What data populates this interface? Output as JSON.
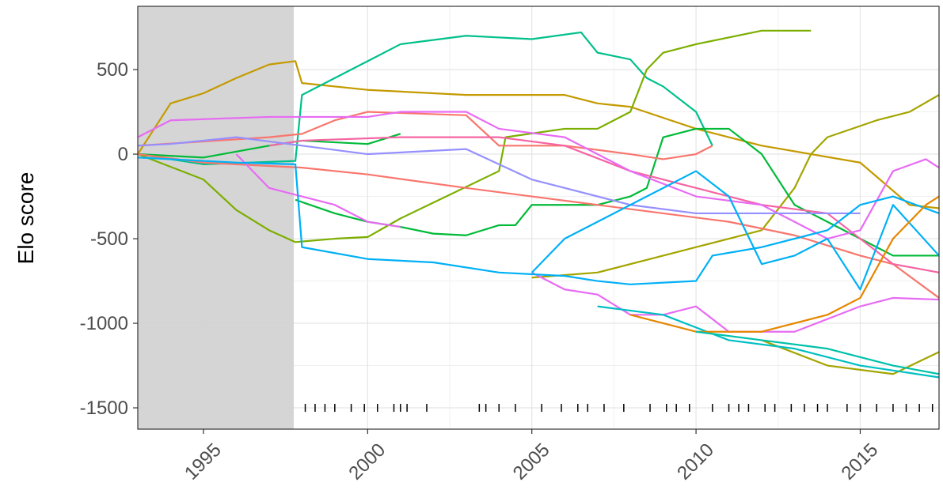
{
  "chart_data": {
    "type": "line",
    "y_label": "Elo score",
    "xlim": [
      1993,
      2017.4
    ],
    "xticks": [
      1995,
      2000,
      2005,
      2010,
      2015
    ],
    "ylim": [
      -1626,
      874
    ],
    "yticks": [
      500,
      0,
      -500,
      -1000,
      -1500
    ],
    "grid": true,
    "shaded_range": [
      1993,
      1997.75
    ],
    "shade_color": "#d3d3d3",
    "rug": {
      "y": -1500,
      "color": "#000",
      "x": [
        1998.1,
        1998.4,
        1998.7,
        1999.0,
        1999.5,
        1999.9,
        2000.3,
        2000.8,
        2001.0,
        2001.2,
        2001.8,
        2003.4,
        2003.6,
        2004.0,
        2004.5,
        2005.3,
        2005.9,
        2006.4,
        2006.7,
        2007.2,
        2007.8,
        2008.6,
        2009.1,
        2009.4,
        2009.8,
        2010.5,
        2011.0,
        2011.3,
        2011.6,
        2012.1,
        2012.4,
        2012.9,
        2013.3,
        2013.7,
        2014.0,
        2014.6,
        2015.0,
        2015.5,
        2016.0,
        2016.4,
        2016.8,
        2017.2
      ]
    },
    "series": [
      {
        "color": "#C49A00",
        "x": [
          1993,
          1994,
          1995,
          1996,
          1997,
          1997.8,
          1998,
          2000,
          2003,
          2006,
          2007,
          2008,
          2010,
          2012,
          2015,
          2016.5,
          2017.4
        ],
        "values": [
          0,
          300,
          360,
          450,
          530,
          550,
          420,
          380,
          350,
          350,
          300,
          280,
          150,
          50,
          -50,
          -300,
          -320
        ]
      },
      {
        "color": "#00C08B",
        "x": [
          1993,
          1995,
          1997.8,
          1998,
          1999,
          2000,
          2001,
          2003,
          2005,
          2006.5,
          2007,
          2008,
          2008.5,
          2009,
          2010,
          2010.5
        ],
        "values": [
          0,
          -60,
          -40,
          350,
          450,
          550,
          650,
          700,
          680,
          720,
          600,
          560,
          450,
          400,
          250,
          50
        ]
      },
      {
        "color": "#7CAE00",
        "x": [
          1993,
          1995,
          1996,
          1997,
          1997.8,
          1999,
          2000,
          2001,
          2004,
          2004.2,
          2006,
          2007,
          2008,
          2008.5,
          2009,
          2010,
          2012,
          2013.5
        ],
        "values": [
          0,
          -150,
          -330,
          -450,
          -520,
          -500,
          -490,
          -380,
          -100,
          100,
          150,
          150,
          250,
          500,
          600,
          650,
          730,
          730
        ]
      },
      {
        "color": "#A3A500",
        "x": [
          2005,
          2007,
          2009,
          2011,
          2012,
          2013,
          2013.5,
          2014,
          2015.5,
          2016.5,
          2017.4
        ],
        "values": [
          -730,
          -700,
          -600,
          -500,
          -450,
          -200,
          0,
          100,
          200,
          250,
          350
        ]
      },
      {
        "color": "#A3A500",
        "x": [
          2012,
          2014,
          2016,
          2017.4
        ],
        "values": [
          -1100,
          -1250,
          -1300,
          -1170
        ]
      },
      {
        "color": "#00BA38",
        "x": [
          1993,
          1995,
          1997,
          1998,
          2000,
          2001
        ],
        "values": [
          0,
          -20,
          50,
          80,
          60,
          120
        ]
      },
      {
        "color": "#00BA38",
        "x": [
          1997.8,
          1999,
          2000,
          2001,
          2002,
          2003,
          2004,
          2004.5,
          2005,
          2007,
          2008,
          2008.5,
          2009,
          2010,
          2011,
          2012,
          2013,
          2014,
          2015,
          2016,
          2017.4
        ],
        "values": [
          -270,
          -350,
          -400,
          -430,
          -470,
          -480,
          -420,
          -420,
          -300,
          -300,
          -250,
          -200,
          100,
          150,
          150,
          0,
          -300,
          -400,
          -500,
          -600,
          -600
        ]
      },
      {
        "color": "#F8766D",
        "x": [
          1993,
          1995,
          1998,
          2000,
          2003,
          2005,
          2007,
          2009,
          2011,
          2013,
          2015,
          2016,
          2017.4
        ],
        "values": [
          0,
          -50,
          -80,
          -120,
          -200,
          -250,
          -300,
          -350,
          -400,
          -480,
          -600,
          -650,
          -850
        ]
      },
      {
        "color": "#F8766D",
        "x": [
          1993,
          1997,
          1998,
          1999,
          2000,
          2003,
          2004,
          2006,
          2008,
          2009,
          2010,
          2010.5
        ],
        "values": [
          50,
          100,
          120,
          200,
          250,
          230,
          50,
          50,
          0,
          -30,
          0,
          50
        ]
      },
      {
        "color": "#F564A3",
        "x": [
          1997,
          1998,
          2001,
          2004,
          2006,
          2008,
          2010,
          2012,
          2014,
          2016,
          2017.4
        ],
        "values": [
          50,
          80,
          100,
          100,
          50,
          -100,
          -200,
          -300,
          -350,
          -650,
          -700
        ]
      },
      {
        "color": "#E76BF3",
        "x": [
          1993,
          1994,
          1997,
          2000,
          2001,
          2003,
          2004,
          2006,
          2008,
          2010,
          2012,
          2014,
          2015,
          2016,
          2017,
          2017.4
        ],
        "values": [
          100,
          200,
          220,
          220,
          250,
          250,
          150,
          100,
          -100,
          -250,
          -300,
          -500,
          -450,
          -100,
          -30,
          -80
        ]
      },
      {
        "color": "#E76BF3",
        "x": [
          1996,
          1997,
          1998,
          1999,
          2000,
          2001
        ],
        "values": [
          0,
          -200,
          -250,
          -300,
          -400,
          -430
        ]
      },
      {
        "color": "#E76BF3",
        "x": [
          2005,
          2006,
          2007,
          2008,
          2009,
          2010,
          2011,
          2013,
          2015,
          2016,
          2017.4
        ],
        "values": [
          -700,
          -800,
          -830,
          -950,
          -950,
          -900,
          -1050,
          -1050,
          -900,
          -850,
          -860
        ]
      },
      {
        "color": "#9590FF",
        "x": [
          1993,
          1994,
          1996,
          1998,
          2000,
          2002,
          2003,
          2005,
          2006,
          2008,
          2010,
          2012,
          2014,
          2015
        ],
        "values": [
          50,
          60,
          100,
          50,
          0,
          20,
          30,
          -150,
          -200,
          -300,
          -350,
          -350,
          -350,
          -350
        ]
      },
      {
        "color": "#00B0F6",
        "x": [
          1993,
          1996,
          1997.8,
          1998,
          2000,
          2002,
          2004,
          2006,
          2007,
          2008,
          2010,
          2010.5,
          2012,
          2014,
          2015,
          2016,
          2017.4
        ],
        "values": [
          -20,
          -50,
          -60,
          -550,
          -620,
          -640,
          -700,
          -720,
          -750,
          -770,
          -750,
          -600,
          -550,
          -450,
          -300,
          -250,
          -350
        ]
      },
      {
        "color": "#00B0F6",
        "x": [
          2005,
          2006,
          2007,
          2008,
          2009,
          2010,
          2011,
          2012,
          2013,
          2014,
          2015,
          2016,
          2017.4
        ],
        "values": [
          -700,
          -500,
          -400,
          -300,
          -200,
          -100,
          -250,
          -650,
          -600,
          -500,
          -800,
          -300,
          -600
        ]
      },
      {
        "color": "#00BFC4",
        "x": [
          2007,
          2009,
          2011,
          2013,
          2015,
          2017.4
        ],
        "values": [
          -900,
          -950,
          -1100,
          -1150,
          -1250,
          -1320
        ]
      },
      {
        "color": "#E58700",
        "x": [
          2008,
          2010,
          2012,
          2014,
          2015,
          2016,
          2017,
          2017.4
        ],
        "values": [
          -950,
          -1050,
          -1050,
          -950,
          -850,
          -500,
          -300,
          -250
        ]
      },
      {
        "color": "#00C1AA",
        "x": [
          2010,
          2012,
          2014,
          2016,
          2017.4
        ],
        "values": [
          -1050,
          -1100,
          -1150,
          -1250,
          -1300
        ]
      }
    ]
  }
}
